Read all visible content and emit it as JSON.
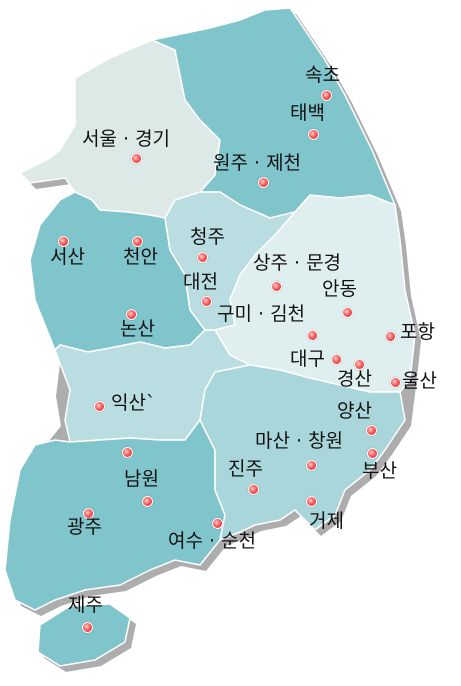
{
  "map": {
    "colors": {
      "seoul_gyeonggi": "#dde9e7",
      "gangwon": "#7fc5cb",
      "chungnam": "#7fc5cb",
      "chungbuk": "#b9dde0",
      "gyeongbuk": "#dfeff0",
      "jeonbuk": "#b9dde0",
      "jeonnam": "#7fc5cb",
      "gyeongnam": "#a9d6da",
      "jeju": "#7fc5cb",
      "marker": "#e0353f"
    },
    "cities": [
      {
        "id": "sokcho",
        "label": "속초"
      },
      {
        "id": "taebaek",
        "label": "태백"
      },
      {
        "id": "seoul",
        "label": "서울 · 경기"
      },
      {
        "id": "wonju",
        "label": "원주 · 제천"
      },
      {
        "id": "cheongju",
        "label": "청주"
      },
      {
        "id": "seosan",
        "label": "서산"
      },
      {
        "id": "cheonan",
        "label": "천안"
      },
      {
        "id": "daejeon",
        "label": "대전"
      },
      {
        "id": "sangju",
        "label": "상주 · 문경"
      },
      {
        "id": "andong",
        "label": "안동"
      },
      {
        "id": "gumi",
        "label": "구미 · 김천"
      },
      {
        "id": "nonsan",
        "label": "논산"
      },
      {
        "id": "pohang",
        "label": "포항"
      },
      {
        "id": "daegu",
        "label": "대구"
      },
      {
        "id": "gyeongsan",
        "label": "경산"
      },
      {
        "id": "ulsan",
        "label": "울산"
      },
      {
        "id": "iksan",
        "label": "익산`"
      },
      {
        "id": "yangsan",
        "label": "양산"
      },
      {
        "id": "masan",
        "label": "마산 · 창원"
      },
      {
        "id": "busan",
        "label": "부산"
      },
      {
        "id": "jinju",
        "label": "진주"
      },
      {
        "id": "namwon",
        "label": "남원"
      },
      {
        "id": "geoje",
        "label": "거제"
      },
      {
        "id": "gwangju",
        "label": "광주"
      },
      {
        "id": "yeosu",
        "label": "여수 · 순천"
      },
      {
        "id": "jeju",
        "label": "제주"
      }
    ]
  }
}
